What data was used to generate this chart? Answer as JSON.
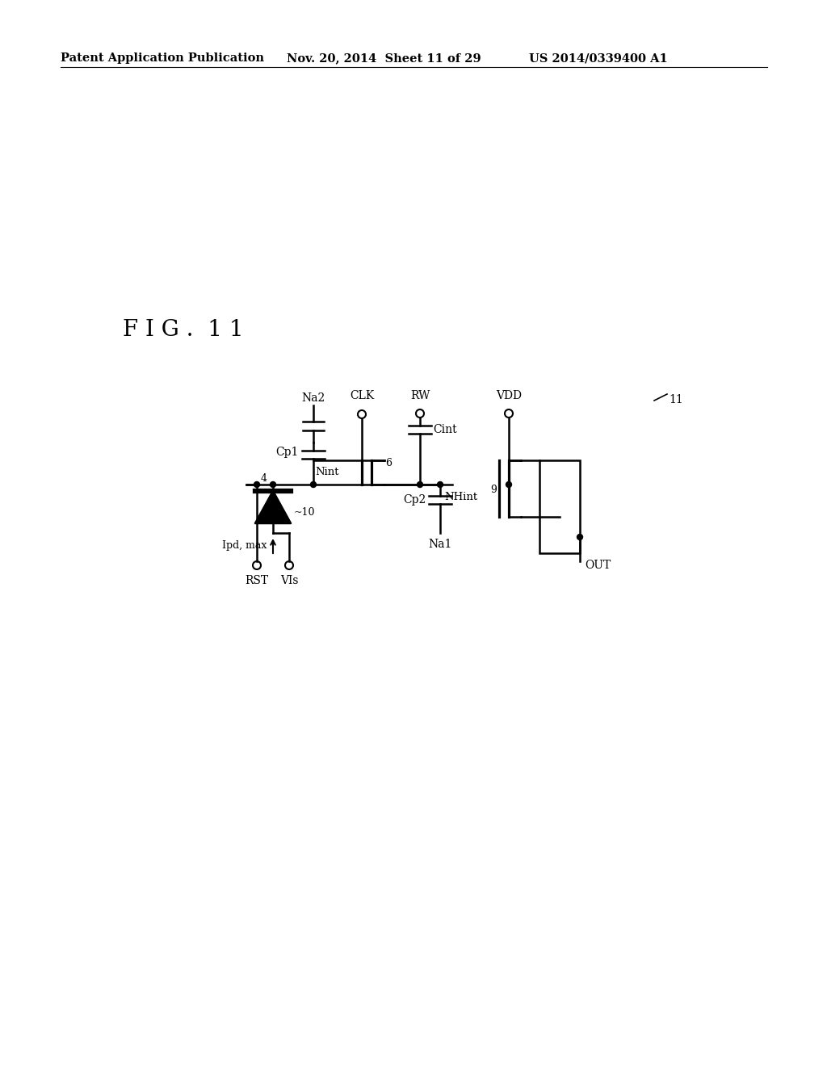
{
  "background_color": "#ffffff",
  "header_left": "Patent Application Publication",
  "header_center": "Nov. 20, 2014  Sheet 11 of 29",
  "header_right": "US 2014/0339400 A1",
  "fig_label": "F I G .  1 1",
  "circuit_ref": "11",
  "header_fontsize": 10.5,
  "fig_fontsize": 20
}
